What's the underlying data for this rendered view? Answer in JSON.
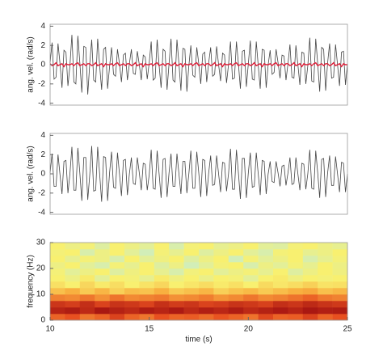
{
  "chart_data": [
    {
      "type": "line",
      "ylabel": "ang. vel. (rad/s)",
      "xlim": [
        10,
        25
      ],
      "ylim": [
        -4.2,
        4.2
      ],
      "yticks": [
        -4,
        -2,
        0,
        2,
        4
      ],
      "x": [
        10,
        10.1,
        10.2,
        10.3,
        10.4,
        10.5,
        10.6,
        10.7,
        10.8,
        10.9,
        11,
        11.1,
        11.2,
        11.3,
        11.4,
        11.5,
        11.6,
        11.7,
        11.8,
        11.9,
        12,
        12.1,
        12.2,
        12.3,
        12.4,
        12.5,
        12.6,
        12.7,
        12.8,
        12.9,
        13,
        13.1,
        13.2,
        13.3,
        13.4,
        13.5,
        13.6,
        13.7,
        13.8,
        13.9,
        14,
        14.1,
        14.2,
        14.3,
        14.4,
        14.5,
        14.6,
        14.7,
        14.8,
        14.9,
        15,
        15.1,
        15.2,
        15.3,
        15.4,
        15.5,
        15.6,
        15.7,
        15.8,
        15.9,
        16,
        16.1,
        16.2,
        16.3,
        16.4,
        16.5,
        16.6,
        16.7,
        16.8,
        16.9,
        17,
        17.1,
        17.2,
        17.3,
        17.4,
        17.5,
        17.6,
        17.7,
        17.8,
        17.9,
        18,
        18.1,
        18.2,
        18.3,
        18.4,
        18.5,
        18.6,
        18.7,
        18.8,
        18.9,
        19,
        19.1,
        19.2,
        19.3,
        19.4,
        19.5,
        19.6,
        19.7,
        19.8,
        19.9,
        20,
        20.1,
        20.2,
        20.3,
        20.4,
        20.5,
        20.6,
        20.7,
        20.8,
        20.9,
        21,
        21.1,
        21.2,
        21.3,
        21.4,
        21.5,
        21.6,
        21.7,
        21.8,
        21.9,
        22,
        22.1,
        22.2,
        22.3,
        22.4,
        22.5,
        22.6,
        22.7,
        22.8,
        22.9,
        23,
        23.1,
        23.2,
        23.3,
        23.4,
        23.5,
        23.6,
        23.7,
        23.8,
        23.9,
        24,
        24.1,
        24.2,
        24.3,
        24.4,
        24.5,
        24.6,
        24.7,
        24.8,
        24.9,
        25
      ],
      "series": [
        {
          "color": "#444444",
          "values": [
            0.2,
            2.3,
            -1.5,
            -1.3,
            2.2,
            0.1,
            -2.4,
            1.5,
            1.3,
            -2.2,
            -0.1,
            3.1,
            -1.8,
            -2.0,
            3.0,
            0.2,
            -2.9,
            1.9,
            1.8,
            -3.1,
            0.1,
            2.6,
            -1.6,
            -1.8,
            2.7,
            -0.1,
            -2.6,
            1.6,
            1.8,
            -2.5,
            -0.2,
            1.8,
            -1.0,
            -1.2,
            1.6,
            0.1,
            -1.8,
            1.0,
            1.2,
            -1.6,
            0.1,
            1.6,
            -0.9,
            -1.0,
            1.4,
            0,
            -1.6,
            1.0,
            0.8,
            -1.5,
            0.2,
            2.4,
            -1.6,
            -1.4,
            2.6,
            -0.1,
            -2.4,
            1.6,
            1.4,
            -2.6,
            0.1,
            2.7,
            -1.6,
            -1.8,
            2.6,
            0.1,
            -2.7,
            1.7,
            1.6,
            -2.8,
            -0.1,
            2.0,
            -1.1,
            -1.3,
            1.8,
            0.1,
            -2.0,
            1.1,
            1.3,
            -1.8,
            0.2,
            1.8,
            -1.2,
            -1.0,
            1.9,
            0,
            -1.7,
            1.2,
            1.0,
            -1.9,
            0,
            2.4,
            -1.5,
            -1.4,
            2.4,
            0.1,
            -2.5,
            1.4,
            1.5,
            -2.3,
            0.1,
            2.5,
            -1.5,
            -1.6,
            2.4,
            -0.1,
            -2.5,
            1.6,
            1.5,
            -2.4,
            0,
            1.5,
            -1.0,
            -0.8,
            1.6,
            0.2,
            -1.4,
            1.0,
            0.9,
            -1.6,
            0.1,
            2.1,
            -1.3,
            -1.4,
            2.0,
            0,
            -2.1,
            1.3,
            1.2,
            -2.0,
            -0.1,
            2.8,
            -1.7,
            -1.8,
            2.7,
            0.1,
            -2.8,
            1.8,
            1.6,
            -2.7,
            0.2,
            2.2,
            -1.4,
            -1.3,
            2.1,
            0,
            -2.2,
            1.3,
            1.4,
            -2.1,
            0.1
          ]
        },
        {
          "color": "#e0203a",
          "values": [
            0.1,
            -0.1,
            0,
            0.2,
            -0.1,
            0,
            0.1,
            -0.2,
            0.1,
            0,
            0,
            0.1,
            -0.1,
            0.1,
            0.2,
            -0.1,
            0,
            0.1,
            -0.1,
            0.1,
            0.1,
            -0.1,
            0,
            0.2,
            -0.1,
            0,
            0.1,
            -0.2,
            0.1,
            0,
            0,
            0.1,
            -0.1,
            0.1,
            0.2,
            -0.1,
            0,
            0.1,
            -0.1,
            0.1,
            0.1,
            -0.1,
            0,
            0.2,
            -0.1,
            0,
            0.1,
            -0.2,
            0.1,
            0,
            0,
            0.1,
            -0.1,
            0.1,
            0.2,
            -0.1,
            0,
            0.1,
            -0.1,
            0.1,
            0.1,
            -0.1,
            0,
            0.2,
            -0.1,
            0,
            0.1,
            -0.2,
            0.1,
            0,
            0,
            0.1,
            -0.1,
            0.1,
            0.2,
            -0.1,
            0,
            0.1,
            -0.1,
            0.1,
            0.1,
            -0.1,
            0,
            0.2,
            -0.1,
            0,
            0.1,
            -0.2,
            0.1,
            0,
            0,
            0.1,
            -0.1,
            0.1,
            0.2,
            -0.1,
            0,
            0.1,
            -0.1,
            0.1,
            0.1,
            -0.1,
            0,
            0.2,
            -0.1,
            0,
            0.1,
            -0.2,
            0.1,
            0,
            0,
            0.1,
            -0.1,
            0.1,
            0.2,
            -0.1,
            0,
            0.1,
            -0.1,
            0.1,
            0.1,
            -0.1,
            0,
            0.2,
            -0.1,
            0,
            0.1,
            -0.2,
            0.1,
            0,
            0,
            0.1,
            -0.1,
            0.1,
            0.2,
            -0.1,
            0,
            0.1,
            -0.1,
            0.1,
            0.1,
            -0.1,
            0,
            0.2,
            -0.1,
            0,
            0.1,
            -0.2,
            0.1,
            0,
            0
          ]
        }
      ]
    },
    {
      "type": "line",
      "ylabel": "ang. vel. (rad/s)",
      "xlim": [
        10,
        25
      ],
      "ylim": [
        -4.2,
        4.2
      ],
      "yticks": [
        -4,
        -2,
        0,
        2,
        4
      ],
      "x": [
        10,
        10.1,
        10.2,
        10.3,
        10.4,
        10.5,
        10.6,
        10.7,
        10.8,
        10.9,
        11,
        11.1,
        11.2,
        11.3,
        11.4,
        11.5,
        11.6,
        11.7,
        11.8,
        11.9,
        12,
        12.1,
        12.2,
        12.3,
        12.4,
        12.5,
        12.6,
        12.7,
        12.8,
        12.9,
        13,
        13.1,
        13.2,
        13.3,
        13.4,
        13.5,
        13.6,
        13.7,
        13.8,
        13.9,
        14,
        14.1,
        14.2,
        14.3,
        14.4,
        14.5,
        14.6,
        14.7,
        14.8,
        14.9,
        15,
        15.1,
        15.2,
        15.3,
        15.4,
        15.5,
        15.6,
        15.7,
        15.8,
        15.9,
        16,
        16.1,
        16.2,
        16.3,
        16.4,
        16.5,
        16.6,
        16.7,
        16.8,
        16.9,
        17,
        17.1,
        17.2,
        17.3,
        17.4,
        17.5,
        17.6,
        17.7,
        17.8,
        17.9,
        18,
        18.1,
        18.2,
        18.3,
        18.4,
        18.5,
        18.6,
        18.7,
        18.8,
        18.9,
        19,
        19.1,
        19.2,
        19.3,
        19.4,
        19.5,
        19.6,
        19.7,
        19.8,
        19.9,
        20,
        20.1,
        20.2,
        20.3,
        20.4,
        20.5,
        20.6,
        20.7,
        20.8,
        20.9,
        21,
        21.1,
        21.2,
        21.3,
        21.4,
        21.5,
        21.6,
        21.7,
        21.8,
        21.9,
        22,
        22.1,
        22.2,
        22.3,
        22.4,
        22.5,
        22.6,
        22.7,
        22.8,
        22.9,
        23,
        23.1,
        23.2,
        23.3,
        23.4,
        23.5,
        23.6,
        23.7,
        23.8,
        23.9,
        24,
        24.1,
        24.2,
        24.3,
        24.4,
        24.5,
        24.6,
        24.7,
        24.8,
        24.9,
        25
      ],
      "series": [
        {
          "color": "#444444",
          "values": [
            0.1,
            2.1,
            -1.3,
            -1.3,
            2.0,
            -0.1,
            -2.1,
            1.3,
            1.4,
            -2.0,
            0,
            2.8,
            -1.7,
            -1.7,
            2.7,
            0.1,
            -2.8,
            1.7,
            1.7,
            -2.7,
            -0.1,
            2.9,
            -1.8,
            -1.7,
            2.8,
            0,
            -2.9,
            1.8,
            1.7,
            -2.8,
            0.1,
            2.3,
            -1.4,
            -1.5,
            2.2,
            0,
            -2.3,
            1.4,
            1.5,
            -2.2,
            0,
            1.7,
            -1.0,
            -1.1,
            1.7,
            0.1,
            -1.7,
            1.1,
            1.0,
            -1.7,
            -0.1,
            2.5,
            -1.5,
            -1.6,
            2.4,
            0,
            -2.5,
            1.5,
            1.6,
            -2.4,
            0.1,
            2.1,
            -1.3,
            -1.3,
            2.1,
            0,
            -2.1,
            1.3,
            1.3,
            -2.0,
            0,
            2.4,
            -1.5,
            -1.5,
            2.3,
            0.1,
            -2.4,
            1.5,
            1.4,
            -2.3,
            0.1,
            1.9,
            -1.2,
            -1.1,
            1.9,
            0,
            -1.9,
            1.2,
            1.1,
            -1.8,
            0,
            2.6,
            -1.6,
            -1.6,
            2.5,
            0.1,
            -2.6,
            1.6,
            1.6,
            -2.5,
            0.1,
            2.2,
            -1.4,
            -1.3,
            2.2,
            0,
            -2.2,
            1.4,
            1.3,
            -2.1,
            0,
            1.3,
            -0.8,
            -0.9,
            1.3,
            0.1,
            -1.3,
            0.8,
            0.9,
            -1.2,
            0.1,
            1.7,
            -1.1,
            -1.0,
            1.7,
            0,
            -1.7,
            1.1,
            1.0,
            -1.6,
            0,
            2.5,
            -1.5,
            -1.6,
            2.4,
            0.1,
            -2.5,
            1.5,
            1.6,
            -2.4,
            0.1,
            1.9,
            -1.2,
            -1.2,
            1.8,
            0,
            -1.9,
            1.2,
            1.1,
            -1.9,
            0
          ]
        }
      ]
    },
    {
      "type": "heatmap",
      "ylabel": "frequency (Hz)",
      "xlabel": "time (s)",
      "xlim": [
        10,
        25
      ],
      "ylim": [
        0,
        30
      ],
      "xticks": [
        10,
        15,
        20,
        25
      ],
      "yticks": [
        0,
        10,
        20,
        30
      ],
      "colorscale": [
        [
          0,
          "#b8ece8"
        ],
        [
          0.3,
          "#f8f070"
        ],
        [
          0.5,
          "#f8b040"
        ],
        [
          0.75,
          "#e85020"
        ],
        [
          1,
          "#a01010"
        ]
      ],
      "z": [
        [
          0.7,
          0.75,
          0.65,
          0.7,
          0.8,
          0.7,
          0.65,
          0.75,
          0.7,
          0.72,
          0.68,
          0.74,
          0.7,
          0.66,
          0.78,
          0.7,
          0.72,
          0.8,
          0.7,
          0.75
        ],
        [
          0.92,
          0.95,
          0.9,
          0.97,
          0.93,
          0.9,
          0.95,
          0.92,
          0.96,
          0.9,
          0.94,
          0.91,
          0.95,
          0.9,
          0.93,
          0.96,
          0.92,
          0.97,
          0.94,
          0.95
        ],
        [
          0.85,
          0.82,
          0.88,
          0.8,
          0.86,
          0.84,
          0.8,
          0.87,
          0.83,
          0.85,
          0.8,
          0.82,
          0.86,
          0.84,
          0.81,
          0.88,
          0.85,
          0.9,
          0.86,
          0.84
        ],
        [
          0.62,
          0.6,
          0.65,
          0.58,
          0.66,
          0.6,
          0.62,
          0.64,
          0.58,
          0.6,
          0.63,
          0.57,
          0.6,
          0.65,
          0.6,
          0.62,
          0.66,
          0.7,
          0.64,
          0.62
        ],
        [
          0.45,
          0.5,
          0.42,
          0.48,
          0.4,
          0.46,
          0.44,
          0.5,
          0.42,
          0.45,
          0.48,
          0.4,
          0.44,
          0.47,
          0.42,
          0.46,
          0.5,
          0.52,
          0.45,
          0.48
        ],
        [
          0.35,
          0.3,
          0.38,
          0.32,
          0.36,
          0.3,
          0.34,
          0.38,
          0.3,
          0.33,
          0.36,
          0.32,
          0.35,
          0.3,
          0.37,
          0.33,
          0.36,
          0.4,
          0.34,
          0.35
        ],
        [
          0.3,
          0.25,
          0.32,
          0.2,
          0.3,
          0.28,
          0.22,
          0.32,
          0.26,
          0.3,
          0.24,
          0.3,
          0.28,
          0.2,
          0.3,
          0.32,
          0.26,
          0.3,
          0.28,
          0.3
        ],
        [
          0.28,
          0.2,
          0.25,
          0.3,
          0.18,
          0.26,
          0.3,
          0.22,
          0.15,
          0.27,
          0.3,
          0.2,
          0.25,
          0.28,
          0.22,
          0.3,
          0.18,
          0.25,
          0.3,
          0.26
        ],
        [
          0.25,
          0.3,
          0.2,
          0.15,
          0.28,
          0.22,
          0.3,
          0.18,
          0.25,
          0.12,
          0.2,
          0.28,
          0.3,
          0.15,
          0.25,
          0.2,
          0.28,
          0.22,
          0.3,
          0.25
        ],
        [
          0.3,
          0.22,
          0.28,
          0.25,
          0.15,
          0.3,
          0.2,
          0.26,
          0.3,
          0.18,
          0.25,
          0.3,
          0.12,
          0.28,
          0.2,
          0.25,
          0.3,
          0.15,
          0.22,
          0.28
        ],
        [
          0.28,
          0.3,
          0.15,
          0.25,
          0.3,
          0.2,
          0.12,
          0.28,
          0.22,
          0.3,
          0.18,
          0.25,
          0.3,
          0.2,
          0.15,
          0.28,
          0.3,
          0.22,
          0.25,
          0.3
        ],
        [
          0.3,
          0.25,
          0.28,
          0.18,
          0.3,
          0.25,
          0.2,
          0.3,
          0.15,
          0.28,
          0.3,
          0.22,
          0.25,
          0.3,
          0.2,
          0.18,
          0.28,
          0.3,
          0.25,
          0.22
        ]
      ]
    }
  ]
}
